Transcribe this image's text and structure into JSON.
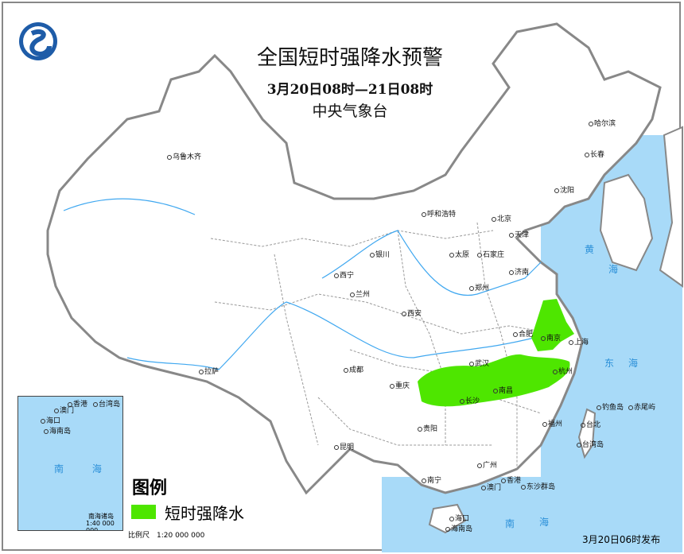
{
  "header": {
    "title": "全国短时强降水预警",
    "period": "3月20日08时—21日08时",
    "agency": "中央气象台",
    "logo_name": "中国气象局"
  },
  "legend": {
    "title": "图例",
    "items": [
      {
        "label": "短时强降水",
        "color": "#4ee600"
      }
    ]
  },
  "scale": "比例尺　1:20 000 000",
  "issued": "3月20日06时发布",
  "colors": {
    "sea": "#a8daf8",
    "land": "#ffffff",
    "border": "#888888",
    "warning": "#4ee600"
  },
  "cities": [
    "乌鲁木齐",
    "哈尔滨",
    "长春",
    "沈阳",
    "呼和浩特",
    "北京",
    "天津",
    "银川",
    "太原",
    "石家庄",
    "济南",
    "西宁",
    "兰州",
    "西安",
    "郑州",
    "合肥",
    "南京",
    "上海",
    "武汉",
    "杭州",
    "南昌",
    "长沙",
    "成都",
    "重庆",
    "贵阳",
    "福州",
    "台北",
    "昆明",
    "拉萨",
    "广州",
    "南宁",
    "香港",
    "澳门",
    "海口"
  ],
  "seas": [
    "黄",
    "海",
    "东",
    "海",
    "南",
    "海"
  ],
  "islands": [
    "钓鱼岛",
    "赤尾屿",
    "台湾岛",
    "东沙群岛",
    "海南岛"
  ],
  "inset": {
    "labels": [
      "香港",
      "澳门",
      "台湾岛",
      "海口",
      "海南岛"
    ],
    "sea": "南 海",
    "title": "南海诸岛",
    "scale": "1:40 000 000"
  }
}
